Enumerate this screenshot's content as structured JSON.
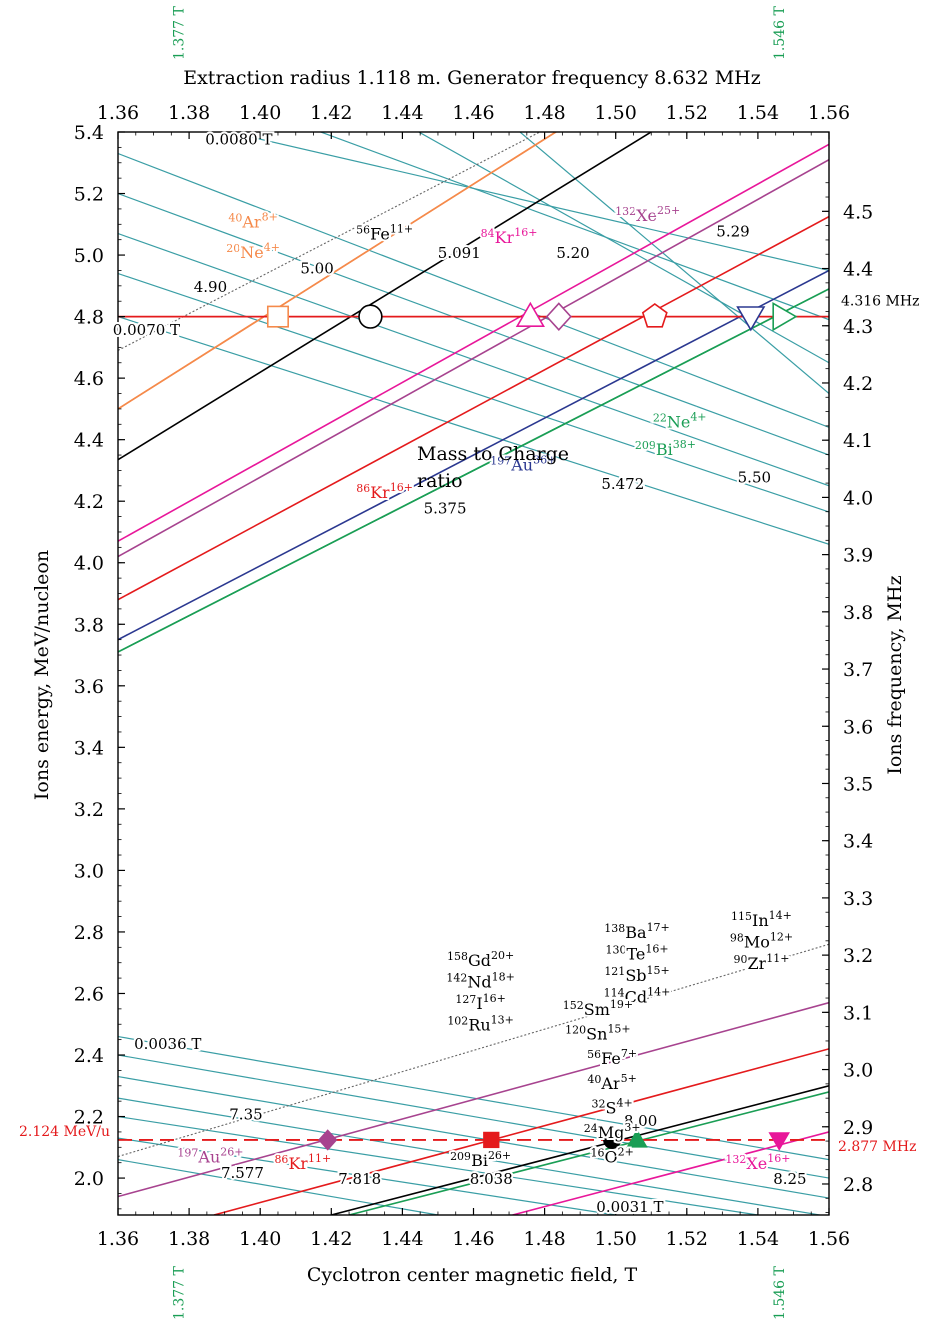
{
  "chart_data": {
    "type": "line",
    "title": "Extraction radius 1.118 m. Generator frequency 8.632 MHz",
    "xlabel": "Cyclotron center magnetic field, T",
    "ylabel": "Ions energy, MeV/nucleon",
    "y2label": "Ions frequency, MHz",
    "text_note": "Mass to Charge\nratio",
    "xlim": [
      1.36,
      1.56
    ],
    "ylim": [
      1.88,
      5.4
    ],
    "x_ticks": [
      "1.36",
      "1.38",
      "1.40",
      "1.42",
      "1.44",
      "1.46",
      "1.48",
      "1.50",
      "1.52",
      "1.54",
      "1.56"
    ],
    "y_ticks": [
      "2.0",
      "2.2",
      "2.4",
      "2.6",
      "2.8",
      "3.0",
      "3.2",
      "3.4",
      "3.6",
      "3.8",
      "4.0",
      "4.2",
      "4.4",
      "4.6",
      "4.8",
      "5.0",
      "5.2",
      "5.4"
    ],
    "y2_ticks": [
      "2.8",
      "2.9",
      "3.0",
      "3.1",
      "3.2",
      "3.3",
      "3.4",
      "3.5",
      "3.6",
      "3.7",
      "3.8",
      "3.9",
      "4.0",
      "4.1",
      "4.2",
      "4.3",
      "4.4",
      "4.5"
    ],
    "vertical_markers": [
      {
        "label": "1.377 T",
        "x": 1.377,
        "color": "#1a9e55"
      },
      {
        "label": "1.546 T",
        "x": 1.546,
        "color": "#1a9e55"
      }
    ],
    "reference_lines": [
      {
        "y": 4.8,
        "label": "4.316 MHz",
        "color": "#e41a1c",
        "style": "solid"
      },
      {
        "y": 2.124,
        "label_left": "2.124 MeV/u",
        "label_right": "2.877 MHz",
        "color": "#e41a1c",
        "style": "dashed"
      }
    ],
    "series": [
      {
        "name": "⁴⁰Ar⁸⁺",
        "color": "#f58a4b",
        "points": [
          [
            1.36,
            4.5
          ],
          [
            1.49,
            5.45
          ]
        ]
      },
      {
        "name": "²⁰Ne⁴⁺",
        "color": "#f58a4b",
        "points": [
          [
            1.36,
            4.5
          ],
          [
            1.49,
            5.45
          ]
        ]
      },
      {
        "name": "⁵⁶Fe¹¹⁺",
        "color": "#000000",
        "points": [
          [
            1.36,
            4.335
          ],
          [
            1.517,
            5.45
          ]
        ]
      },
      {
        "name": "⁸⁴Kr¹⁶⁺",
        "color": "#e8179a",
        "points": [
          [
            1.36,
            4.07
          ],
          [
            1.56,
            5.36
          ]
        ]
      },
      {
        "name": "¹³²Xe²⁵⁺",
        "color": "#a7438f",
        "points": [
          [
            1.36,
            4.02
          ],
          [
            1.56,
            5.31
          ]
        ]
      },
      {
        "name": "⁸⁶Kr¹⁶⁺",
        "color": "#e41a1c",
        "points": [
          [
            1.36,
            3.88
          ],
          [
            1.56,
            5.125
          ]
        ]
      },
      {
        "name": "¹⁹⁷Au³⁶⁺",
        "color": "#2b3890",
        "points": [
          [
            1.36,
            3.75
          ],
          [
            1.56,
            4.95
          ]
        ]
      },
      {
        "name": "²⁰⁹Bi³⁸⁺",
        "color": "#1a9e55",
        "points": [
          [
            1.36,
            3.71
          ],
          [
            1.56,
            4.89
          ]
        ]
      },
      {
        "name": "²²Ne⁴⁺",
        "color": "#1a9e55",
        "points": [
          [
            1.36,
            3.71
          ],
          [
            1.56,
            4.89
          ]
        ]
      },
      {
        "name": "¹⁹⁷Au²⁶⁺",
        "color": "#a7438f",
        "points": [
          [
            1.36,
            1.94
          ],
          [
            1.56,
            2.57
          ]
        ]
      },
      {
        "name": "⁸⁶Kr¹¹⁺",
        "color": "#e41a1c",
        "points": [
          [
            1.387,
            1.88
          ],
          [
            1.56,
            2.42
          ]
        ]
      },
      {
        "name": "²⁰⁹Bi²⁶⁺",
        "color": "#000000",
        "points": [
          [
            1.42,
            1.88
          ],
          [
            1.56,
            2.3
          ]
        ]
      },
      {
        "name": "¹³²Xe¹⁶⁺",
        "color": "#e8179a",
        "points": [
          [
            1.471,
            1.88
          ],
          [
            1.56,
            2.15
          ]
        ]
      },
      {
        "name": "¹⁶O²⁺",
        "color": "#1a9e55",
        "points": [
          [
            1.425,
            1.88
          ],
          [
            1.56,
            2.28
          ]
        ]
      }
    ],
    "guide_lines": [
      {
        "label": "0.0080 T / 0.0070 T",
        "color": "#666666",
        "style": "dotted",
        "points": [
          [
            1.36,
            4.69
          ],
          [
            1.487,
            5.45
          ]
        ]
      },
      {
        "label": "0.0036 T / 0.0031 T",
        "color": "#666666",
        "style": "dotted",
        "points": [
          [
            1.36,
            2.07
          ],
          [
            1.56,
            2.76
          ]
        ]
      }
    ],
    "iso_lines_upper": {
      "color": "#3a9ea5",
      "lines": [
        [
          [
            1.36,
            5.33
          ],
          [
            1.56,
            4.44
          ]
        ],
        [
          [
            1.36,
            5.2
          ],
          [
            1.56,
            4.35
          ]
        ],
        [
          [
            1.36,
            5.07
          ],
          [
            1.56,
            4.25
          ]
        ],
        [
          [
            1.36,
            4.94
          ],
          [
            1.56,
            4.165
          ]
        ],
        [
          [
            1.36,
            4.8
          ],
          [
            1.56,
            4.06
          ]
        ],
        [
          [
            1.38,
            5.43
          ],
          [
            1.56,
            4.95
          ]
        ],
        [
          [
            1.41,
            5.43
          ],
          [
            1.56,
            4.79
          ]
        ],
        [
          [
            1.44,
            5.43
          ],
          [
            1.56,
            4.65
          ]
        ],
        [
          [
            1.47,
            5.43
          ],
          [
            1.56,
            4.55
          ]
        ]
      ]
    },
    "iso_lines_lower": {
      "color": "#3a9ea5",
      "lines": [
        [
          [
            1.36,
            2.46
          ],
          [
            1.56,
            2.06
          ]
        ],
        [
          [
            1.36,
            2.4
          ],
          [
            1.56,
            2.0
          ]
        ],
        [
          [
            1.36,
            2.33
          ],
          [
            1.56,
            1.935
          ]
        ],
        [
          [
            1.36,
            2.26
          ],
          [
            1.56,
            1.875
          ]
        ],
        [
          [
            1.36,
            2.2
          ],
          [
            1.54,
            1.88
          ]
        ],
        [
          [
            1.36,
            2.13
          ],
          [
            1.5,
            1.88
          ]
        ],
        [
          [
            1.36,
            2.06
          ],
          [
            1.45,
            1.88
          ]
        ]
      ]
    },
    "markers": [
      {
        "shape": "square",
        "filled": false,
        "color": "#f58a4b",
        "x": 1.405,
        "y": 4.8
      },
      {
        "shape": "circle",
        "filled": false,
        "color": "#000000",
        "x": 1.431,
        "y": 4.8
      },
      {
        "shape": "triangle-up",
        "filled": false,
        "color": "#e8179a",
        "x": 1.476,
        "y": 4.8
      },
      {
        "shape": "diamond",
        "filled": false,
        "color": "#a7438f",
        "x": 1.484,
        "y": 4.8
      },
      {
        "shape": "pentagon",
        "filled": false,
        "color": "#e41a1c",
        "x": 1.511,
        "y": 4.8
      },
      {
        "shape": "triangle-down",
        "filled": false,
        "color": "#2b3890",
        "x": 1.538,
        "y": 4.8
      },
      {
        "shape": "triangle-right",
        "filled": false,
        "color": "#1a9e55",
        "x": 1.547,
        "y": 4.8
      },
      {
        "shape": "diamond",
        "filled": true,
        "color": "#a7438f",
        "x": 1.419,
        "y": 2.124
      },
      {
        "shape": "square",
        "filled": true,
        "color": "#e41a1c",
        "x": 1.465,
        "y": 2.124
      },
      {
        "shape": "circle",
        "filled": true,
        "color": "#000000",
        "x": 1.499,
        "y": 2.124
      },
      {
        "shape": "triangle-up",
        "filled": true,
        "color": "#1a9e55",
        "x": 1.506,
        "y": 2.124
      },
      {
        "shape": "triangle-down",
        "filled": true,
        "color": "#e8179a",
        "x": 1.546,
        "y": 2.124
      }
    ],
    "annotations": [
      {
        "text": "0.0080 T",
        "x": 1.394,
        "y": 5.36,
        "color": "#000000"
      },
      {
        "text": "0.0070 T",
        "x": 1.368,
        "y": 4.74,
        "color": "#000000"
      },
      {
        "text": "4.90",
        "x": 1.386,
        "y": 4.88,
        "color": "#000000"
      },
      {
        "text": "5.00",
        "x": 1.416,
        "y": 4.94,
        "color": "#000000"
      },
      {
        "text": "5.091",
        "x": 1.456,
        "y": 4.99,
        "color": "#000000"
      },
      {
        "text": "5.20",
        "x": 1.488,
        "y": 4.99,
        "color": "#000000"
      },
      {
        "text": "5.29",
        "x": 1.533,
        "y": 5.06,
        "color": "#000000"
      },
      {
        "text": "5.375",
        "x": 1.452,
        "y": 4.16,
        "color": "#000000"
      },
      {
        "text": "5.472",
        "x": 1.502,
        "y": 4.24,
        "color": "#000000"
      },
      {
        "text": "5.50",
        "x": 1.539,
        "y": 4.26,
        "color": "#000000"
      },
      {
        "text": "0.0036 T",
        "x": 1.374,
        "y": 2.42,
        "color": "#000000"
      },
      {
        "text": "7.35",
        "x": 1.396,
        "y": 2.19,
        "color": "#000000"
      },
      {
        "text": "7.577",
        "x": 1.395,
        "y": 2.0,
        "color": "#000000"
      },
      {
        "text": "7.818",
        "x": 1.428,
        "y": 1.98,
        "color": "#000000"
      },
      {
        "text": "8.038",
        "x": 1.465,
        "y": 1.98,
        "color": "#000000"
      },
      {
        "text": "8.00",
        "x": 1.507,
        "y": 2.17,
        "color": "#000000"
      },
      {
        "text": "8.25",
        "x": 1.549,
        "y": 1.98,
        "color": "#000000"
      },
      {
        "text": "0.0031 T",
        "x": 1.504,
        "y": 1.89,
        "color": "#000000"
      }
    ],
    "ion_labels": [
      {
        "iso": "40",
        "el": "Ar",
        "charge": "8+",
        "x": 1.398,
        "y": 5.09,
        "color": "#f58a4b"
      },
      {
        "iso": "20",
        "el": "Ne",
        "charge": "4+",
        "x": 1.398,
        "y": 4.99,
        "color": "#f58a4b"
      },
      {
        "iso": "56",
        "el": "Fe",
        "charge": "11+",
        "x": 1.435,
        "y": 5.05,
        "color": "#000000"
      },
      {
        "iso": "84",
        "el": "Kr",
        "charge": "16+",
        "x": 1.47,
        "y": 5.04,
        "color": "#e8179a"
      },
      {
        "iso": "132",
        "el": "Xe",
        "charge": "25+",
        "x": 1.509,
        "y": 5.11,
        "color": "#a7438f"
      },
      {
        "iso": "86",
        "el": "Kr",
        "charge": "16+",
        "x": 1.435,
        "y": 4.21,
        "color": "#e41a1c"
      },
      {
        "iso": "197",
        "el": "Au",
        "charge": "36+",
        "x": 1.474,
        "y": 4.3,
        "color": "#2b3890"
      },
      {
        "iso": "209",
        "el": "Bi",
        "charge": "38+",
        "x": 1.514,
        "y": 4.35,
        "color": "#1a9e55"
      },
      {
        "iso": "22",
        "el": "Ne",
        "charge": "4+",
        "x": 1.518,
        "y": 4.44,
        "color": "#1a9e55"
      },
      {
        "iso": "158",
        "el": "Gd",
        "charge": "20+",
        "x": 1.462,
        "y": 2.69,
        "color": "#000000"
      },
      {
        "iso": "142",
        "el": "Nd",
        "charge": "18+",
        "x": 1.462,
        "y": 2.62,
        "color": "#000000"
      },
      {
        "iso": "127",
        "el": "I",
        "charge": "16+",
        "x": 1.462,
        "y": 2.55,
        "color": "#000000"
      },
      {
        "iso": "102",
        "el": "Ru",
        "charge": "13+",
        "x": 1.462,
        "y": 2.48,
        "color": "#000000"
      },
      {
        "iso": "138",
        "el": "Ba",
        "charge": "17+",
        "x": 1.506,
        "y": 2.78,
        "color": "#000000"
      },
      {
        "iso": "130",
        "el": "Te",
        "charge": "16+",
        "x": 1.506,
        "y": 2.71,
        "color": "#000000"
      },
      {
        "iso": "121",
        "el": "Sb",
        "charge": "15+",
        "x": 1.506,
        "y": 2.64,
        "color": "#000000"
      },
      {
        "iso": "114",
        "el": "Cd",
        "charge": "14+",
        "x": 1.506,
        "y": 2.57,
        "color": "#000000"
      },
      {
        "iso": "115",
        "el": "In",
        "charge": "14+",
        "x": 1.541,
        "y": 2.82,
        "color": "#000000"
      },
      {
        "iso": "98",
        "el": "Mo",
        "charge": "12+",
        "x": 1.541,
        "y": 2.75,
        "color": "#000000"
      },
      {
        "iso": "90",
        "el": "Zr",
        "charge": "11+",
        "x": 1.541,
        "y": 2.68,
        "color": "#000000"
      },
      {
        "iso": "152",
        "el": "Sm",
        "charge": "19+",
        "x": 1.495,
        "y": 2.53,
        "color": "#000000"
      },
      {
        "iso": "120",
        "el": "Sn",
        "charge": "15+",
        "x": 1.495,
        "y": 2.45,
        "color": "#000000"
      },
      {
        "iso": "56",
        "el": "Fe",
        "charge": "7+",
        "x": 1.499,
        "y": 2.37,
        "color": "#000000"
      },
      {
        "iso": "40",
        "el": "Ar",
        "charge": "5+",
        "x": 1.499,
        "y": 2.29,
        "color": "#000000"
      },
      {
        "iso": "32",
        "el": "S",
        "charge": "4+",
        "x": 1.499,
        "y": 2.21,
        "color": "#000000"
      },
      {
        "iso": "24",
        "el": "Mg",
        "charge": "3+",
        "x": 1.499,
        "y": 2.13,
        "color": "#000000"
      },
      {
        "iso": "16",
        "el": "O",
        "charge": "2+",
        "x": 1.499,
        "y": 2.05,
        "color": "#000000"
      },
      {
        "iso": "197",
        "el": "Au",
        "charge": "26+",
        "x": 1.386,
        "y": 2.05,
        "color": "#a7438f"
      },
      {
        "iso": "86",
        "el": "Kr",
        "charge": "11+",
        "x": 1.412,
        "y": 2.03,
        "color": "#e41a1c"
      },
      {
        "iso": "209",
        "el": "Bi",
        "charge": "26+",
        "x": 1.462,
        "y": 2.04,
        "color": "#000000"
      },
      {
        "iso": "132",
        "el": "Xe",
        "charge": "16+",
        "x": 1.54,
        "y": 2.03,
        "color": "#e8179a"
      }
    ]
  }
}
